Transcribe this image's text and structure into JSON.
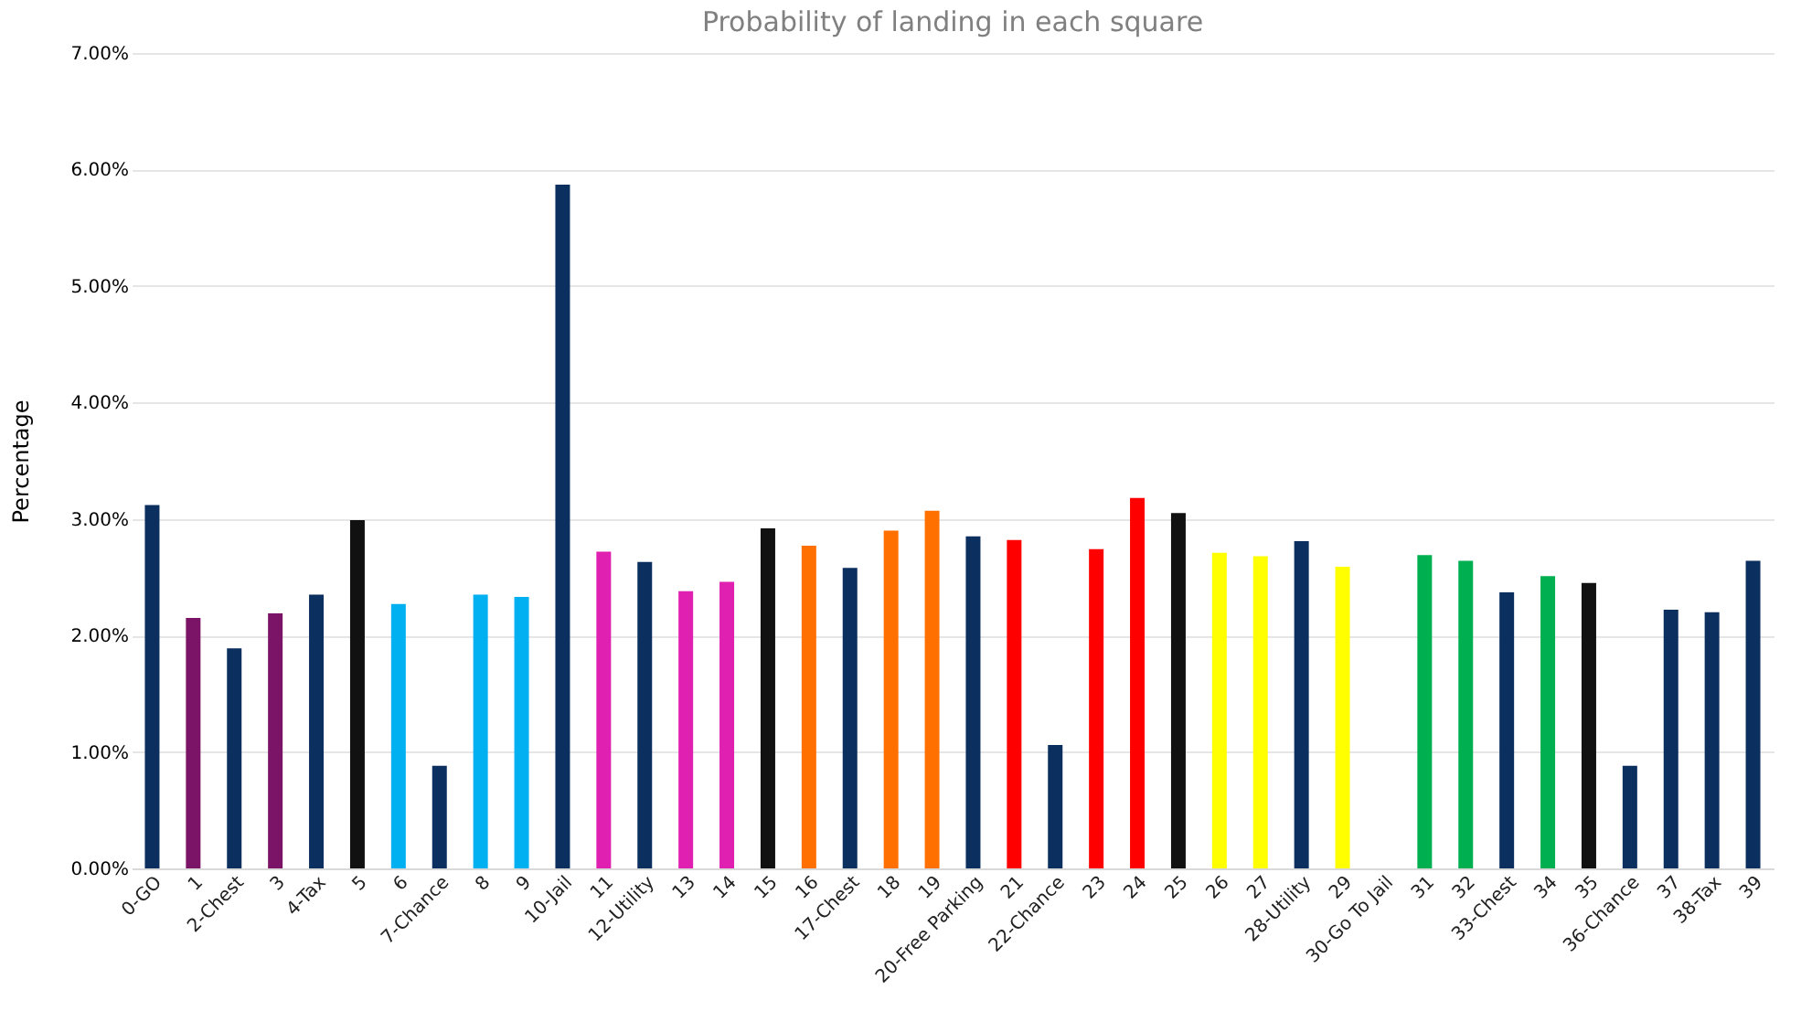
{
  "chart_data": {
    "type": "bar",
    "title": "Probability of landing in each square",
    "ylabel": "Percentage",
    "categories": [
      "0-GO",
      "1",
      "2-Chest",
      "3",
      "4-Tax",
      "5",
      "6",
      "7-Chance",
      "8",
      "9",
      "10-Jail",
      "11",
      "12-Utility",
      "13",
      "14",
      "15",
      "16",
      "17-Chest",
      "18",
      "19",
      "20-Free Parking",
      "21",
      "22-Chance",
      "23",
      "24",
      "25",
      "26",
      "27",
      "28-Utility",
      "29",
      "30-Go To Jail",
      "31",
      "32",
      "33-Chest",
      "34",
      "35",
      "36-Chance",
      "37",
      "38-Tax",
      "39"
    ],
    "values": [
      3.12,
      2.15,
      1.89,
      2.19,
      2.35,
      2.99,
      2.27,
      0.88,
      2.35,
      2.33,
      5.87,
      2.72,
      2.63,
      2.38,
      2.46,
      2.92,
      2.77,
      2.58,
      2.9,
      3.07,
      2.85,
      2.82,
      1.06,
      2.74,
      3.18,
      3.05,
      2.71,
      2.68,
      2.81,
      2.59,
      0,
      2.69,
      2.64,
      2.37,
      2.51,
      2.45,
      0.88,
      2.22,
      2.2,
      2.64
    ],
    "colors": [
      "#0b2f5e",
      "#7b1466",
      "#0b2f5e",
      "#7b1466",
      "#0b2f5e",
      "#111111",
      "#00b0f0",
      "#0b2f5e",
      "#00b0f0",
      "#00b0f0",
      "#0b2f5e",
      "#e020b0",
      "#0b2f5e",
      "#e020b0",
      "#e020b0",
      "#111111",
      "#ff7000",
      "#0b2f5e",
      "#ff7000",
      "#ff7000",
      "#0b2f5e",
      "#ff0000",
      "#0b2f5e",
      "#ff0000",
      "#ff0000",
      "#111111",
      "#ffff00",
      "#ffff00",
      "#0b2f5e",
      "#ffff00",
      "#0b2f5e",
      "#00b050",
      "#00b050",
      "#0b2f5e",
      "#00b050",
      "#111111",
      "#0b2f5e",
      "#0b2f5e",
      "#0b2f5e",
      "#0b2f5e"
    ],
    "ylim": [
      0,
      7
    ],
    "yticks": [
      {
        "value": 0,
        "label": "0.00%"
      },
      {
        "value": 1,
        "label": "1.00%"
      },
      {
        "value": 2,
        "label": "2.00%"
      },
      {
        "value": 3,
        "label": "3.00%"
      },
      {
        "value": 4,
        "label": "4.00%"
      },
      {
        "value": 5,
        "label": "5.00%"
      },
      {
        "value": 6,
        "label": "6.00%"
      },
      {
        "value": 7,
        "label": "7.00%"
      }
    ],
    "grid": "y"
  }
}
